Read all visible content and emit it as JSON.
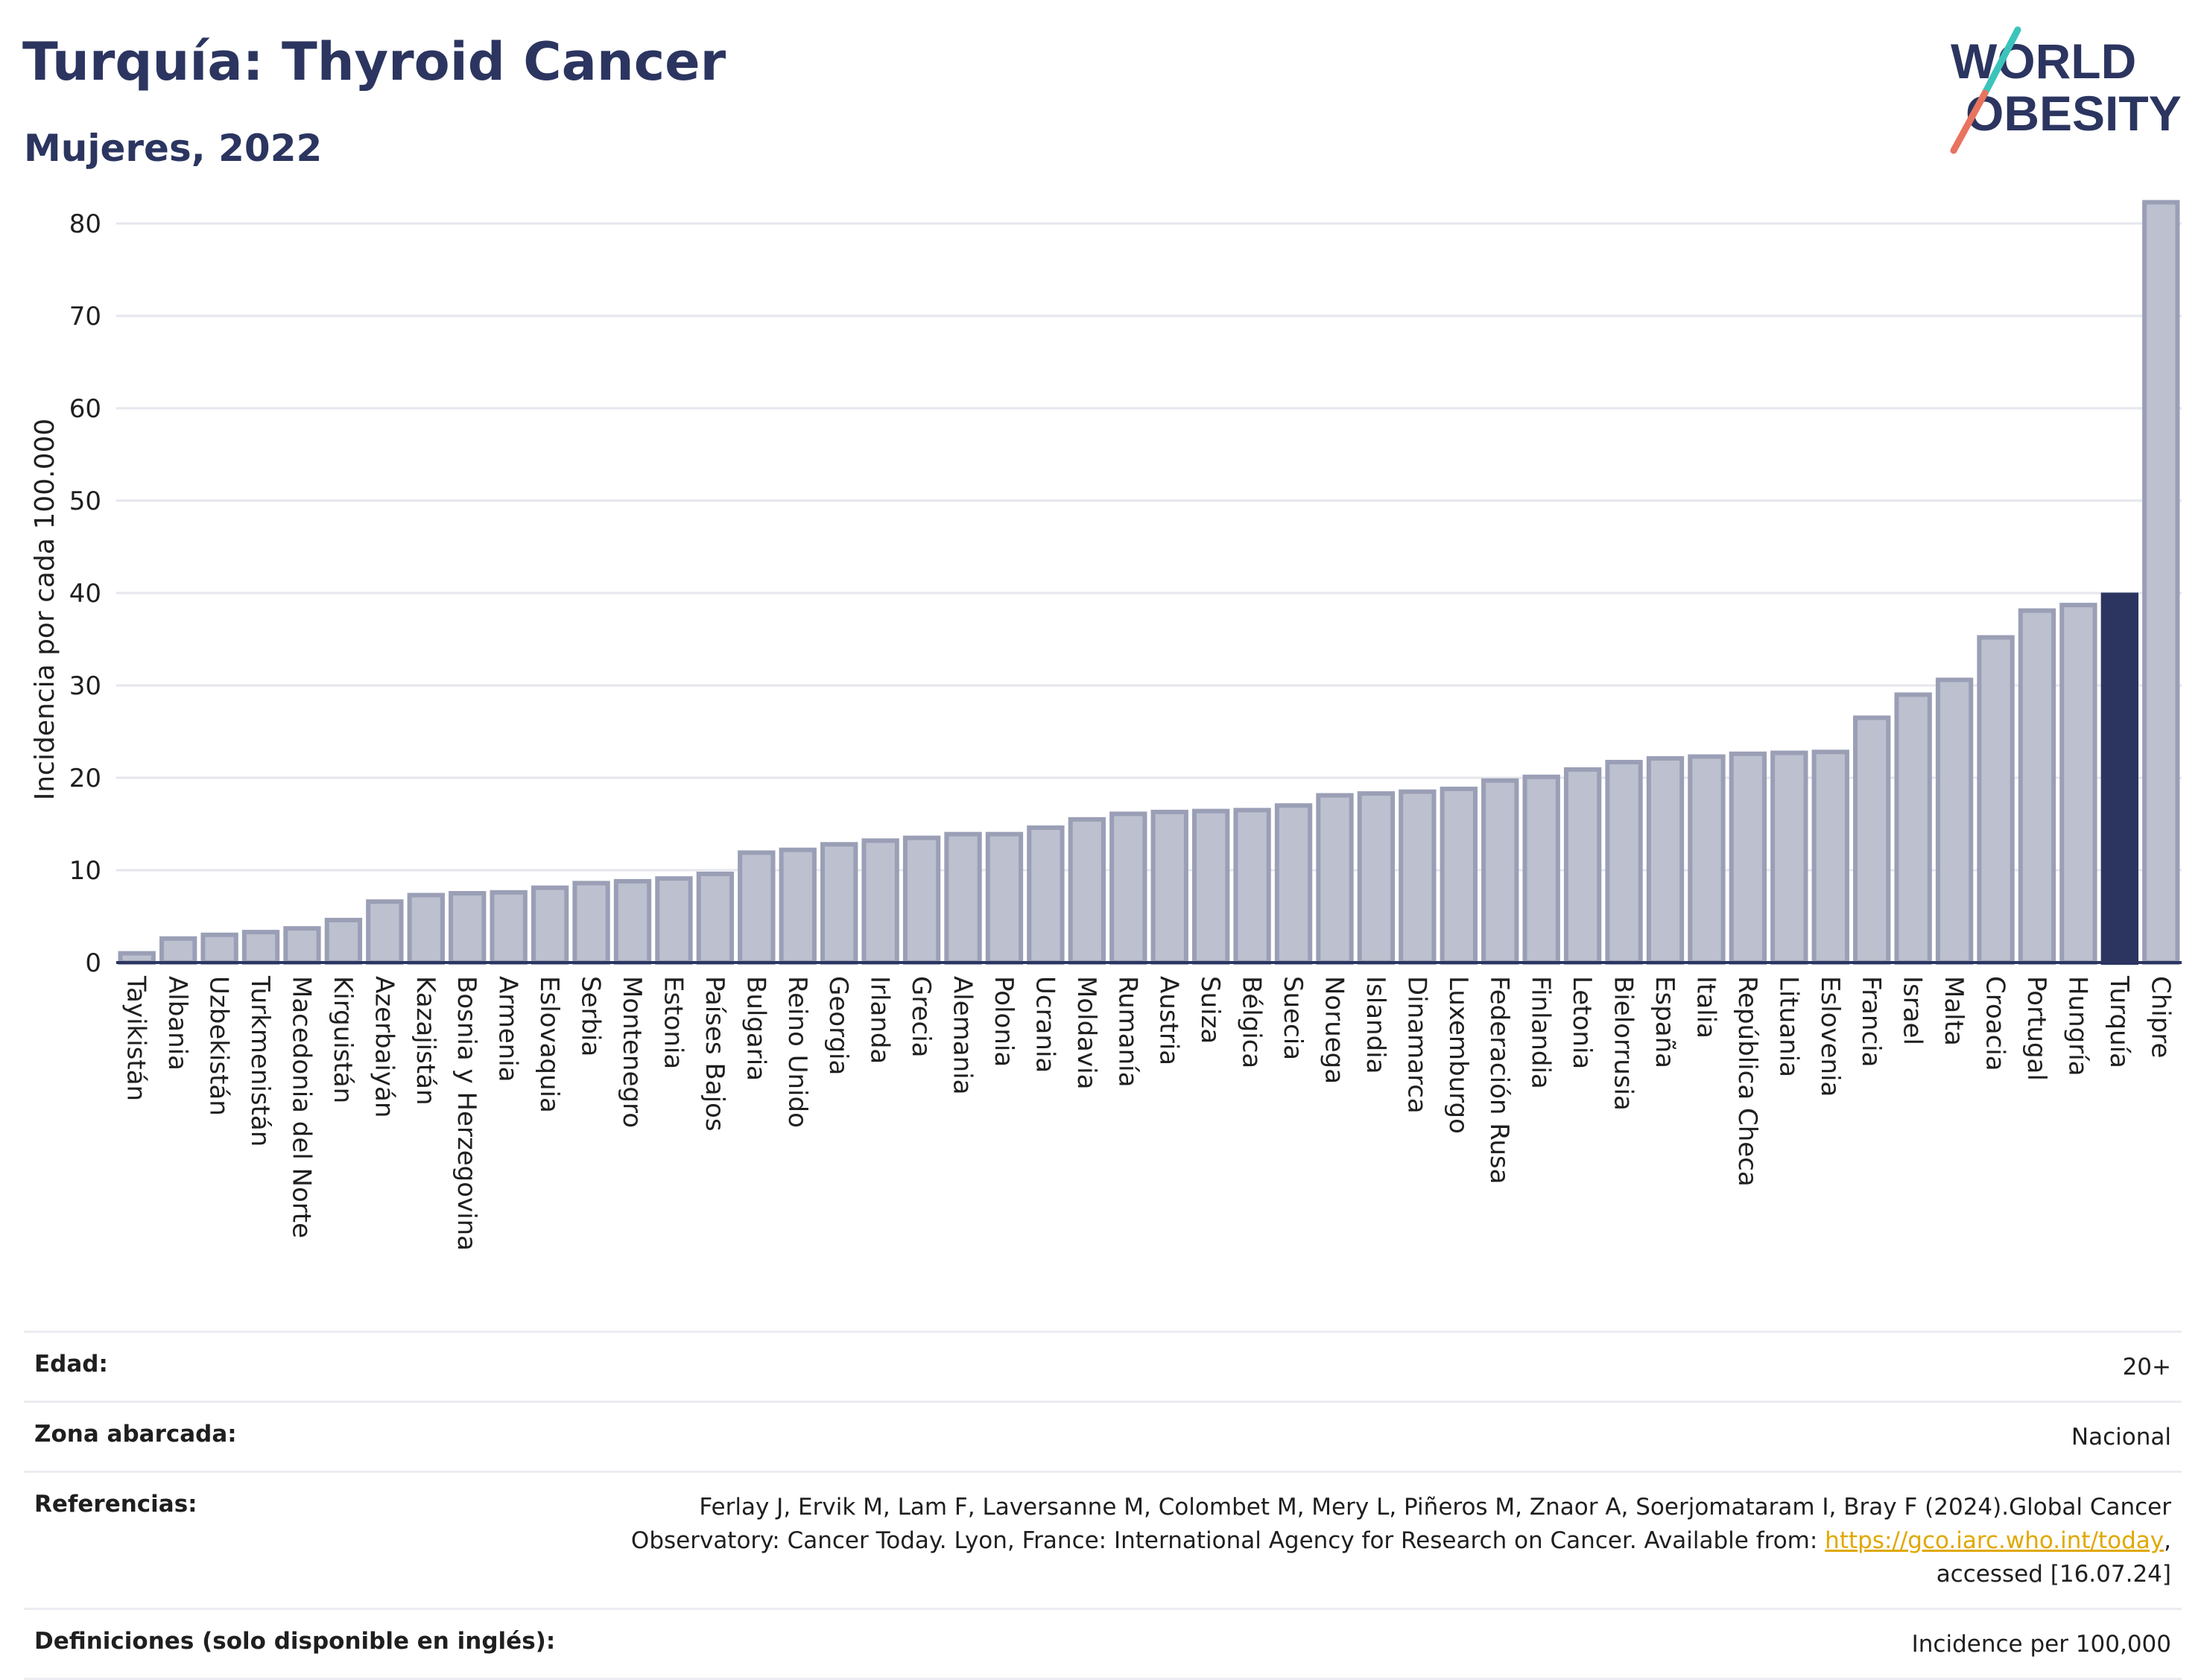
{
  "header": {
    "title": "Turquía: Thyroid Cancer",
    "subtitle": "Mujeres, 2022"
  },
  "logo": {
    "line1": "WORLD",
    "line2": "OBESITY",
    "icon": "world-obesity-logo"
  },
  "colors": {
    "highlight": "#2b3560",
    "bar_fill": "#bcc0cf",
    "bar_stroke": "#9a9fb6",
    "axis": "#2b3560",
    "grid": "#e6e6ee"
  },
  "chart_data": {
    "type": "bar",
    "ylabel": "Incidencia por cada 100.000",
    "ylim": [
      0,
      85
    ],
    "yticks": [
      0,
      10,
      20,
      30,
      40,
      50,
      60,
      70,
      80
    ],
    "grid": true,
    "highlight": "Turquía",
    "categories": [
      "Tayikistán",
      "Albania",
      "Uzbekistán",
      "Turkmenistán",
      "Macedonia del Norte",
      "Kirguistán",
      "Azerbaiyán",
      "Kazajistán",
      "Bosnia y Herzegovina",
      "Armenia",
      "Eslovaquia",
      "Serbia",
      "Montenegro",
      "Estonia",
      "Países Bajos",
      "Bulgaria",
      "Reino Unido",
      "Georgia",
      "Irlanda",
      "Grecia",
      "Alemania",
      "Polonia",
      "Ucrania",
      "Moldavia",
      "Rumanía",
      "Austria",
      "Suiza",
      "Bélgica",
      "Suecia",
      "Noruega",
      "Islandia",
      "Dinamarca",
      "Luxemburgo",
      "Federación Rusa",
      "Finlandia",
      "Letonia",
      "Bielorrusia",
      "España",
      "Italia",
      "República Checa",
      "Lituania",
      "Eslovenia",
      "Francia",
      "Israel",
      "Malta",
      "Croacia",
      "Portugal",
      "Hungría",
      "Turquía",
      "Chipre"
    ],
    "values": [
      1.0,
      2.6,
      3.0,
      3.3,
      3.7,
      4.6,
      6.6,
      7.3,
      7.5,
      7.6,
      8.1,
      8.6,
      8.8,
      9.1,
      9.6,
      11.9,
      12.2,
      12.8,
      13.2,
      13.5,
      13.9,
      13.9,
      14.6,
      15.5,
      16.1,
      16.3,
      16.4,
      16.5,
      17.0,
      18.1,
      18.3,
      18.5,
      18.8,
      19.7,
      20.1,
      20.9,
      21.7,
      22.1,
      22.3,
      22.6,
      22.7,
      22.8,
      26.5,
      29.0,
      30.6,
      35.2,
      38.1,
      38.7,
      39.8,
      82.3
    ]
  },
  "info": {
    "rows": [
      {
        "label": "Edad:",
        "value": "20+"
      },
      {
        "label": "Zona abarcada:",
        "value": "Nacional"
      },
      {
        "label": "Referencias:",
        "value_pre": "Ferlay J, Ervik M, Lam F, Laversanne M, Colombet M, Mery L, Piñeros M, Znaor A, Soerjomataram I, Bray F (2024).Global Cancer Observatory: Cancer Today. Lyon, France: International Agency for Research on Cancer. Available from: ",
        "link": "https://gco.iarc.who.int/today",
        "value_post": ", accessed [16.07.24]"
      },
      {
        "label": "Definiciones (solo disponible en inglés):",
        "value": "Incidence per 100,000"
      }
    ]
  }
}
